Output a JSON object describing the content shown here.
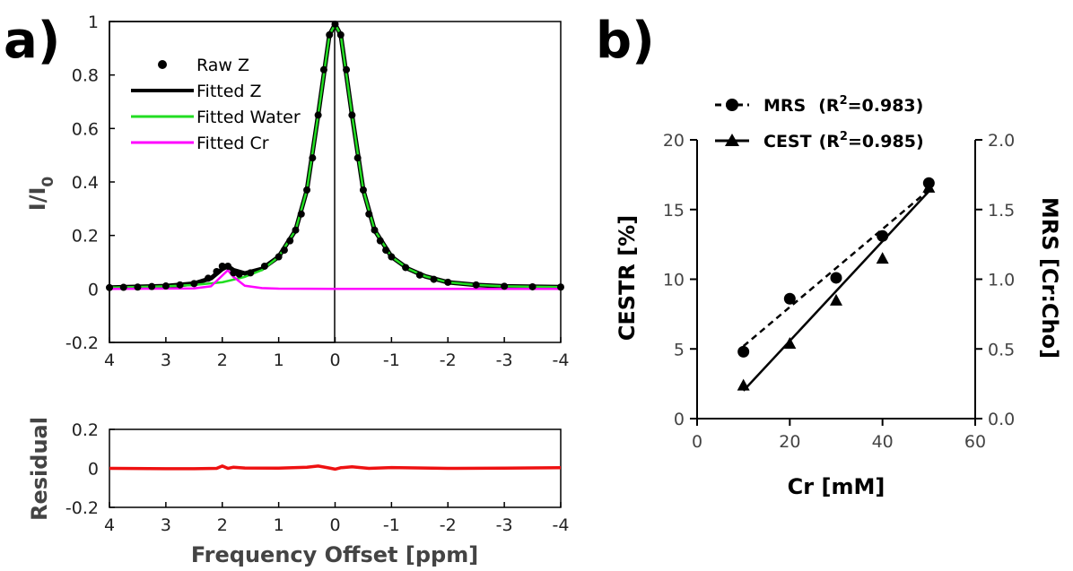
{
  "panel_a": {
    "label": "a)",
    "chart_data": {
      "type": "line",
      "xlabel": "Frequency Offset [ppm]",
      "ylabel_main": "I/I",
      "ylabel_main_sub": "0",
      "ylabel_residual": "Residual",
      "xlim": [
        4,
        -4
      ],
      "x_reversed": true,
      "ylim_main": [
        -0.2,
        1.0
      ],
      "ylim_residual": [
        -0.2,
        0.2
      ],
      "x_ticks": [
        "4",
        "3",
        "2",
        "1",
        "0",
        "-1",
        "-2",
        "-3",
        "-4"
      ],
      "y_ticks_main": [
        "-0.2",
        "0",
        "0.2",
        "0.4",
        "0.6",
        "0.8",
        "1"
      ],
      "y_ticks_residual": [
        "-0.2",
        "0",
        "0.2"
      ],
      "legend_position": "top-left",
      "colors": {
        "raw": "#000000",
        "fitted_z": "#000000",
        "water": "#22dd22",
        "cr": "#ff00ff",
        "residual": "#ee1111"
      },
      "series": [
        {
          "name": "Raw Z",
          "style": "markers",
          "x": [
            4.0,
            3.75,
            3.5,
            3.25,
            3.0,
            2.75,
            2.5,
            2.25,
            2.1,
            2.0,
            1.9,
            1.8,
            1.7,
            1.5,
            1.25,
            1.0,
            0.9,
            0.8,
            0.7,
            0.6,
            0.5,
            0.4,
            0.3,
            0.2,
            0.1,
            0.0,
            -0.1,
            -0.2,
            -0.3,
            -0.4,
            -0.5,
            -0.6,
            -0.7,
            -0.8,
            -0.9,
            -1.0,
            -1.25,
            -1.5,
            -1.75,
            -2.0,
            -2.5,
            -3.0,
            -3.5,
            -4.0
          ],
          "y": [
            0.005,
            0.006,
            0.007,
            0.009,
            0.011,
            0.015,
            0.02,
            0.04,
            0.065,
            0.085,
            0.085,
            0.06,
            0.055,
            0.06,
            0.085,
            0.12,
            0.145,
            0.18,
            0.22,
            0.28,
            0.37,
            0.49,
            0.65,
            0.82,
            0.95,
            0.99,
            0.95,
            0.82,
            0.65,
            0.49,
            0.37,
            0.28,
            0.22,
            0.18,
            0.145,
            0.12,
            0.08,
            0.052,
            0.036,
            0.025,
            0.015,
            0.01,
            0.008,
            0.007
          ]
        },
        {
          "name": "Fitted Z",
          "style": "line",
          "x": [
            4.0,
            3.0,
            2.5,
            2.2,
            2.0,
            1.9,
            1.8,
            1.6,
            1.3,
            1.0,
            0.7,
            0.5,
            0.3,
            0.1,
            0.0,
            -0.1,
            -0.3,
            -0.5,
            -0.7,
            -1.0,
            -1.3,
            -1.6,
            -2.0,
            -2.5,
            -3.0,
            -4.0
          ],
          "y": [
            0.005,
            0.011,
            0.02,
            0.04,
            0.075,
            0.085,
            0.07,
            0.058,
            0.075,
            0.12,
            0.22,
            0.37,
            0.65,
            0.95,
            0.99,
            0.95,
            0.65,
            0.37,
            0.22,
            0.12,
            0.075,
            0.047,
            0.025,
            0.015,
            0.01,
            0.007
          ]
        },
        {
          "name": "Fitted Water",
          "style": "line",
          "x": [
            4.0,
            3.0,
            2.5,
            2.0,
            1.6,
            1.3,
            1.0,
            0.7,
            0.5,
            0.3,
            0.1,
            0.0,
            -0.1,
            -0.3,
            -0.5,
            -0.7,
            -1.0,
            -1.3,
            -1.6,
            -2.0,
            -2.5,
            -3.0,
            -4.0
          ],
          "y": [
            0.005,
            0.01,
            0.015,
            0.025,
            0.045,
            0.07,
            0.12,
            0.22,
            0.37,
            0.65,
            0.95,
            0.99,
            0.95,
            0.65,
            0.37,
            0.22,
            0.12,
            0.075,
            0.047,
            0.025,
            0.015,
            0.01,
            0.007
          ]
        },
        {
          "name": "Fitted Cr",
          "style": "line",
          "x": [
            4.0,
            2.5,
            2.2,
            2.0,
            1.9,
            1.8,
            1.6,
            1.3,
            1.0,
            0.0,
            -4.0
          ],
          "y": [
            0.0,
            0.002,
            0.01,
            0.05,
            0.07,
            0.045,
            0.012,
            0.003,
            0.001,
            0.0,
            0.0
          ]
        }
      ],
      "residual": {
        "x": [
          4.0,
          3.0,
          2.5,
          2.1,
          2.0,
          1.9,
          1.8,
          1.6,
          1.0,
          0.5,
          0.3,
          0.1,
          0.0,
          -0.1,
          -0.3,
          -0.6,
          -1.0,
          -2.0,
          -3.0,
          -4.0
        ],
        "y": [
          0.0,
          -0.002,
          -0.002,
          0.0,
          0.012,
          0.0,
          0.006,
          0.002,
          0.001,
          0.006,
          0.012,
          0.002,
          -0.004,
          0.003,
          0.008,
          0.0,
          0.004,
          0.0,
          0.001,
          0.003
        ]
      }
    }
  },
  "panel_b": {
    "label": "b)",
    "chart_data": {
      "type": "scatter",
      "xlabel": "Cr [mM]",
      "ylabel_left": "CESTR [%]",
      "ylabel_right": "MRS [Cr:Cho]",
      "xlim": [
        0,
        60
      ],
      "ylim_left": [
        0,
        20
      ],
      "ylim_right": [
        0.0,
        2.0
      ],
      "x_ticks": [
        "0",
        "20",
        "40",
        "60"
      ],
      "y_ticks_left": [
        "0",
        "5",
        "10",
        "15",
        "20"
      ],
      "y_ticks_right": [
        "0.0",
        "0.5",
        "1.0",
        "1.5",
        "2.0"
      ],
      "legend_position": "top",
      "series": [
        {
          "name_prefix": "MRS",
          "r2_label": "(R",
          "r2_sup": "2",
          "r2_value": "=0.983)",
          "axis": "right",
          "marker": "circle",
          "line": "dashed",
          "x": [
            10,
            20,
            30,
            40,
            50
          ],
          "y": [
            0.48,
            0.86,
            1.01,
            1.31,
            1.69
          ],
          "fit": [
            [
              10,
              0.52
            ],
            [
              50,
              1.64
            ]
          ]
        },
        {
          "name_prefix": "CEST",
          "r2_label": "(R",
          "r2_sup": "2",
          "r2_value": "=0.985)",
          "axis": "left",
          "marker": "triangle",
          "line": "solid",
          "x": [
            10,
            20,
            30,
            40,
            50
          ],
          "y": [
            2.4,
            5.4,
            8.5,
            11.5,
            16.6
          ],
          "fit": [
            [
              10,
              2.0
            ],
            [
              50,
              16.3
            ]
          ]
        }
      ]
    }
  }
}
